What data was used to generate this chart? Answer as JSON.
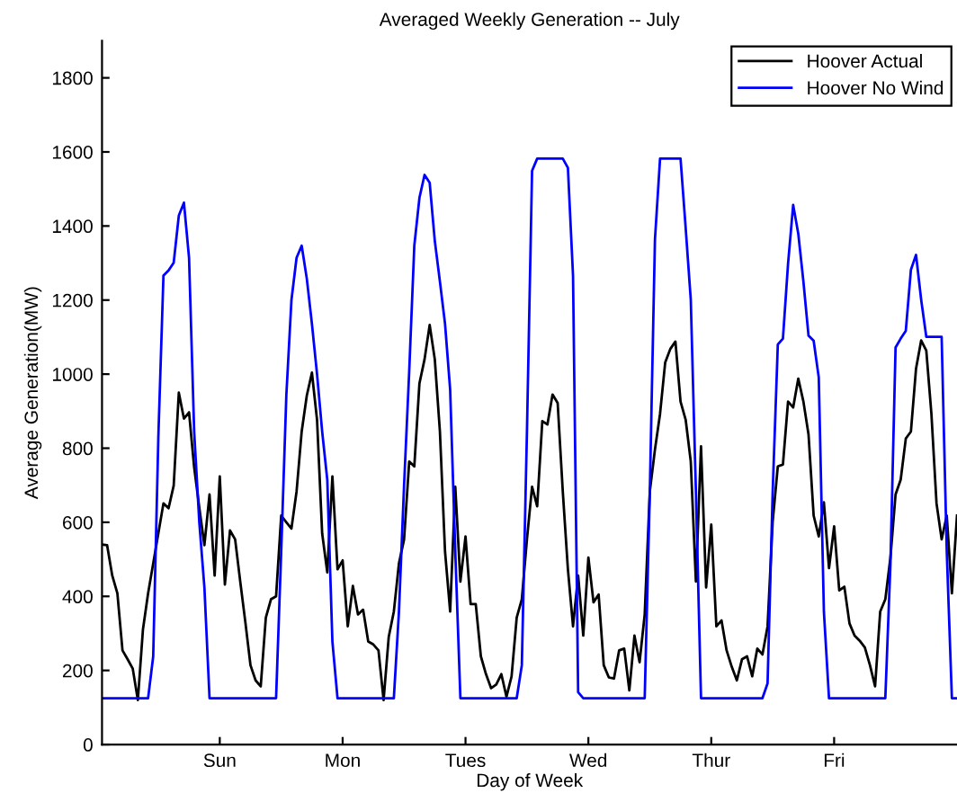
{
  "chart_data": {
    "type": "line",
    "title": "Averaged Weekly Generation -- July",
    "xlabel": "Day of Week",
    "ylabel": "Average Generation(MW)",
    "categories": [
      null,
      null,
      null,
      null,
      null,
      null,
      null,
      null,
      null,
      null,
      null,
      null,
      null,
      null,
      null,
      null,
      null,
      null,
      null,
      null,
      null,
      null,
      null,
      "Sun",
      null,
      null,
      null,
      null,
      null,
      null,
      null,
      null,
      null,
      null,
      null,
      null,
      null,
      null,
      null,
      null,
      null,
      null,
      null,
      null,
      null,
      null,
      null,
      "Mon",
      null,
      null,
      null,
      null,
      null,
      null,
      null,
      null,
      null,
      null,
      null,
      null,
      null,
      null,
      null,
      null,
      null,
      null,
      null,
      null,
      null,
      null,
      null,
      "Tues",
      null,
      null,
      null,
      null,
      null,
      null,
      null,
      null,
      null,
      null,
      null,
      null,
      null,
      null,
      null,
      null,
      null,
      null,
      null,
      null,
      null,
      null,
      null,
      "Wed",
      null,
      null,
      null,
      null,
      null,
      null,
      null,
      null,
      null,
      null,
      null,
      null,
      null,
      null,
      null,
      null,
      null,
      null,
      null,
      null,
      null,
      null,
      null,
      "Thur",
      null,
      null,
      null,
      null,
      null,
      null,
      null,
      null,
      null,
      null,
      null,
      null,
      null,
      null,
      null,
      null,
      null,
      null,
      null,
      null,
      null,
      null,
      null,
      "Fri",
      null,
      null,
      null,
      null,
      null,
      null,
      null,
      null,
      null,
      null,
      null,
      null,
      null,
      null,
      null,
      null,
      null,
      null,
      null,
      null,
      null,
      null,
      null,
      null
    ],
    "ylim": [
      0,
      1900
    ],
    "yticks": [
      0,
      200,
      400,
      600,
      800,
      1000,
      1200,
      1400,
      1600,
      1800
    ],
    "legend": "top right",
    "marker": "none",
    "line_style": "solid",
    "series": [
      {
        "name": "Hoover Actual",
        "color": "#000000",
        "values": [
          540,
          538,
          456,
          408,
          254,
          230,
          205,
          120,
          311,
          408,
          489,
          570,
          651,
          638,
          699,
          950,
          880,
          897,
          748,
          640,
          538,
          675,
          456,
          724,
          432,
          578,
          554,
          440,
          330,
          214,
          173,
          157,
          343,
          392,
          400,
          618,
          600,
          583,
          683,
          845,
          942,
          1004,
          877,
          570,
          465,
          724,
          473,
          497,
          319,
          428,
          351,
          364,
          278,
          270,
          254,
          120,
          290,
          359,
          489,
          554,
          764,
          751,
          975,
          1040,
          1133,
          1040,
          845,
          521,
          359,
          696,
          440,
          562,
          379,
          379,
          238,
          190,
          152,
          162,
          190,
          129,
          184,
          343,
          392,
          554,
          696,
          643,
          873,
          864,
          945,
          922,
          683,
          473,
          319,
          456,
          294,
          505,
          384,
          405,
          214,
          181,
          178,
          254,
          259,
          146,
          294,
          222,
          351,
          683,
          796,
          893,
          1031,
          1068,
          1088,
          926,
          877,
          764,
          440,
          805,
          424,
          594,
          319,
          335,
          254,
          210,
          173,
          230,
          238,
          184,
          259,
          243,
          319,
          602,
          751,
          756,
          926,
          910,
          988,
          926,
          837,
          618,
          562,
          654,
          476,
          589,
          416,
          426,
          327,
          294,
          280,
          262,
          214,
          157,
          359,
          392,
          505,
          675,
          715,
          826,
          845,
          1015,
          1091,
          1064,
          893,
          651,
          554,
          618,
          408,
          618
        ]
      },
      {
        "name": "Hoover No Wind",
        "color": "#0000ff",
        "values": [
          125,
          125,
          125,
          125,
          125,
          125,
          125,
          125,
          125,
          125,
          238,
          829,
          1266,
          1280,
          1301,
          1428,
          1463,
          1314,
          845,
          600,
          424,
          125,
          125,
          125,
          125,
          125,
          125,
          125,
          125,
          125,
          125,
          125,
          125,
          125,
          125,
          521,
          942,
          1200,
          1314,
          1347,
          1258,
          1136,
          1000,
          845,
          715,
          278,
          125,
          125,
          125,
          125,
          125,
          125,
          125,
          125,
          125,
          125,
          125,
          125,
          359,
          700,
          1007,
          1347,
          1476,
          1538,
          1517,
          1360,
          1250,
          1136,
          958,
          521,
          125,
          125,
          125,
          125,
          125,
          125,
          125,
          125,
          125,
          125,
          125,
          125,
          214,
          845,
          1549,
          1582,
          1582,
          1582,
          1582,
          1582,
          1582,
          1557,
          1266,
          141,
          125,
          125,
          125,
          125,
          125,
          125,
          125,
          125,
          125,
          125,
          125,
          125,
          125,
          683,
          1363,
          1582,
          1582,
          1582,
          1582,
          1582,
          1395,
          1201,
          683,
          125,
          125,
          125,
          125,
          125,
          125,
          125,
          125,
          125,
          125,
          125,
          125,
          125,
          165,
          683,
          1080,
          1096,
          1298,
          1457,
          1379,
          1250,
          1104,
          1090,
          991,
          359,
          125,
          125,
          125,
          125,
          125,
          125,
          125,
          125,
          125,
          125,
          125,
          125,
          489,
          1072,
          1096,
          1117,
          1282,
          1322,
          1201,
          1101,
          1101,
          1101,
          1101,
          521,
          125,
          125
        ]
      }
    ]
  }
}
